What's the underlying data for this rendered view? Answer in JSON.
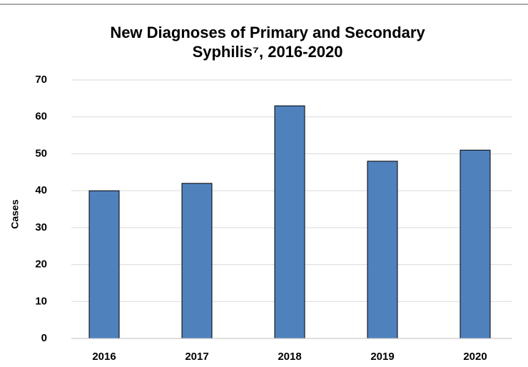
{
  "chart_data": {
    "type": "bar",
    "title": [
      "New Diagnoses of Primary and Secondary",
      "Syphilis⁷,  2016-2020"
    ],
    "y_label": "Cases",
    "categories": [
      "2016",
      "2017",
      "2018",
      "2019",
      "2020"
    ],
    "values": [
      40,
      42,
      63,
      48,
      51
    ],
    "color": "#4f81bd",
    "ylim": [
      0,
      70
    ],
    "yticks": [
      0,
      10,
      20,
      30,
      40,
      50,
      60,
      70
    ],
    "grid": true
  }
}
